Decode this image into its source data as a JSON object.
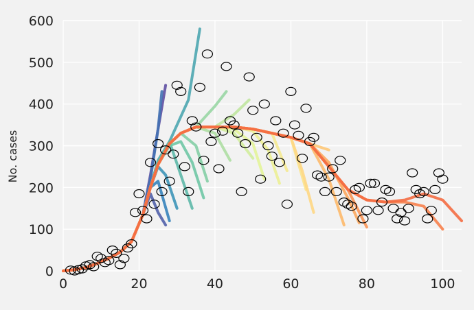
{
  "chart_data": {
    "type": "scatter",
    "title": "",
    "xlabel": "",
    "ylabel": "No. cases",
    "xlim": [
      0,
      105
    ],
    "ylim": [
      0,
      600
    ],
    "xticks": [
      0,
      20,
      40,
      60,
      80,
      100
    ],
    "yticks": [
      0,
      100,
      200,
      300,
      400,
      500,
      600
    ],
    "grid": true,
    "legend": "none",
    "colors": {
      "background": "#f2f2f2",
      "grid": "#ffffff",
      "points": "#000000",
      "palette": [
        "#5e4fa2",
        "#3288bd",
        "#66c2a5",
        "#abdda4",
        "#e6f598",
        "#fee08b",
        "#fdae61",
        "#f46d43"
      ]
    },
    "observed": {
      "x": [
        2,
        3,
        4,
        5,
        6,
        7,
        8,
        9,
        10,
        11,
        12,
        13,
        14,
        15,
        16,
        17,
        18,
        19,
        20,
        21,
        22,
        23,
        24,
        25,
        26,
        27,
        28,
        29,
        30,
        31,
        32,
        33,
        34,
        35,
        36,
        37,
        38,
        39,
        40,
        41,
        42,
        43,
        44,
        45,
        46,
        47,
        48,
        49,
        50,
        51,
        52,
        53,
        54,
        55,
        56,
        57,
        58,
        59,
        60,
        61,
        62,
        63,
        64,
        65,
        66,
        67,
        68,
        69,
        70,
        71,
        72,
        73,
        74,
        75,
        76,
        77,
        78,
        79,
        80,
        81,
        82,
        83,
        84,
        85,
        86,
        87,
        88,
        89,
        90,
        91,
        92,
        93,
        94,
        95,
        96,
        97,
        98,
        99,
        100
      ],
      "y": [
        2,
        0,
        3,
        5,
        12,
        15,
        10,
        35,
        30,
        20,
        25,
        50,
        42,
        15,
        30,
        55,
        65,
        140,
        185,
        145,
        125,
        260,
        160,
        305,
        190,
        290,
        215,
        280,
        445,
        430,
        250,
        190,
        360,
        345,
        440,
        265,
        520,
        310,
        330,
        245,
        335,
        490,
        360,
        350,
        330,
        190,
        305,
        465,
        385,
        320,
        220,
        400,
        300,
        275,
        360,
        260,
        330,
        160,
        430,
        350,
        325,
        270,
        390,
        310,
        320,
        230,
        225,
        190,
        225,
        245,
        190,
        265,
        165,
        160,
        155,
        195,
        200,
        125,
        145,
        210,
        210,
        145,
        165,
        195,
        190,
        150,
        125,
        140,
        120,
        150,
        235,
        195,
        185,
        190,
        125,
        145,
        195,
        235,
        220
      ]
    },
    "forecast_series": [
      {
        "x": [
          0,
          3,
          6,
          9,
          12,
          15,
          18,
          21,
          23,
          25,
          27
        ],
        "y": [
          0,
          3,
          8,
          18,
          30,
          45,
          70,
          135,
          230,
          340,
          445
        ]
      },
      {
        "x": [
          0,
          3,
          6,
          9,
          12,
          15,
          18,
          21,
          23,
          25,
          27
        ],
        "y": [
          0,
          3,
          8,
          18,
          30,
          45,
          70,
          135,
          185,
          140,
          110
        ]
      },
      {
        "x": [
          0,
          3,
          6,
          9,
          12,
          15,
          18,
          21,
          23,
          25,
          26
        ],
        "y": [
          0,
          3,
          8,
          18,
          30,
          45,
          70,
          135,
          220,
          340,
          430
        ]
      },
      {
        "x": [
          0,
          3,
          6,
          9,
          12,
          15,
          18,
          21,
          23,
          25,
          28
        ],
        "y": [
          0,
          3,
          8,
          18,
          30,
          45,
          70,
          135,
          200,
          215,
          120
        ]
      },
      {
        "x": [
          0,
          3,
          6,
          9,
          12,
          15,
          18,
          21,
          23,
          25,
          27,
          30
        ],
        "y": [
          0,
          3,
          8,
          18,
          30,
          45,
          70,
          135,
          200,
          250,
          230,
          150
        ]
      },
      {
        "x": [
          0,
          3,
          6,
          9,
          12,
          15,
          18,
          21,
          23,
          25,
          28,
          33,
          36
        ],
        "y": [
          0,
          3,
          8,
          18,
          30,
          45,
          70,
          135,
          200,
          265,
          310,
          410,
          580
        ]
      },
      {
        "x": [
          0,
          3,
          6,
          9,
          12,
          15,
          18,
          21,
          23,
          25,
          28,
          31,
          34
        ],
        "y": [
          0,
          3,
          8,
          18,
          30,
          45,
          70,
          135,
          200,
          260,
          310,
          230,
          150
        ]
      },
      {
        "x": [
          0,
          3,
          6,
          9,
          12,
          15,
          18,
          21,
          23,
          25,
          28,
          31,
          34,
          37
        ],
        "y": [
          0,
          3,
          8,
          18,
          30,
          45,
          70,
          135,
          200,
          255,
          300,
          310,
          260,
          175
        ]
      },
      {
        "x": [
          0,
          3,
          6,
          9,
          12,
          15,
          18,
          21,
          23,
          25,
          28,
          31,
          35,
          38
        ],
        "y": [
          0,
          3,
          8,
          18,
          30,
          45,
          70,
          135,
          200,
          255,
          305,
          330,
          300,
          215
        ]
      },
      {
        "x": [
          0,
          3,
          6,
          9,
          12,
          15,
          18,
          21,
          23,
          25,
          28,
          31,
          35,
          40,
          43
        ],
        "y": [
          0,
          3,
          8,
          18,
          30,
          45,
          70,
          135,
          200,
          255,
          305,
          330,
          345,
          395,
          430
        ]
      },
      {
        "x": [
          0,
          3,
          6,
          9,
          12,
          15,
          18,
          21,
          23,
          25,
          28,
          31,
          35,
          40,
          44
        ],
        "y": [
          0,
          3,
          8,
          18,
          30,
          45,
          70,
          135,
          200,
          255,
          305,
          330,
          345,
          330,
          265
        ]
      },
      {
        "x": [
          0,
          3,
          6,
          9,
          12,
          15,
          18,
          21,
          23,
          25,
          28,
          31,
          35,
          40,
          45,
          49
        ],
        "y": [
          0,
          3,
          8,
          18,
          30,
          45,
          70,
          135,
          200,
          255,
          305,
          330,
          345,
          345,
          375,
          410
        ]
      },
      {
        "x": [
          0,
          3,
          6,
          9,
          12,
          15,
          18,
          21,
          23,
          25,
          28,
          31,
          35,
          40,
          45,
          50
        ],
        "y": [
          0,
          3,
          8,
          18,
          30,
          45,
          70,
          135,
          200,
          255,
          305,
          330,
          345,
          345,
          330,
          270
        ]
      },
      {
        "x": [
          0,
          3,
          6,
          9,
          12,
          15,
          18,
          21,
          23,
          25,
          28,
          31,
          35,
          40,
          45,
          50,
          53
        ],
        "y": [
          0,
          3,
          8,
          18,
          30,
          45,
          70,
          135,
          200,
          255,
          305,
          330,
          345,
          345,
          340,
          305,
          220
        ]
      },
      {
        "x": [
          0,
          3,
          6,
          9,
          12,
          15,
          18,
          21,
          23,
          25,
          28,
          31,
          35,
          40,
          45,
          50,
          54,
          57
        ],
        "y": [
          0,
          3,
          8,
          18,
          30,
          45,
          70,
          135,
          200,
          255,
          305,
          330,
          345,
          345,
          345,
          335,
          290,
          210
        ]
      },
      {
        "x": [
          0,
          3,
          6,
          9,
          12,
          15,
          18,
          21,
          23,
          25,
          28,
          31,
          35,
          40,
          45,
          50,
          55,
          59
        ],
        "y": [
          0,
          3,
          8,
          18,
          30,
          45,
          70,
          135,
          200,
          255,
          305,
          330,
          345,
          345,
          345,
          340,
          330,
          240
        ]
      },
      {
        "x": [
          0,
          3,
          6,
          9,
          12,
          15,
          18,
          21,
          23,
          25,
          28,
          31,
          35,
          40,
          45,
          50,
          55,
          60,
          64
        ],
        "y": [
          0,
          3,
          8,
          18,
          30,
          45,
          70,
          135,
          200,
          255,
          305,
          330,
          345,
          345,
          345,
          340,
          330,
          320,
          195
        ]
      },
      {
        "x": [
          0,
          3,
          6,
          9,
          12,
          15,
          18,
          21,
          23,
          25,
          28,
          31,
          35,
          40,
          45,
          50,
          55,
          60,
          63,
          66
        ],
        "y": [
          0,
          3,
          8,
          18,
          30,
          45,
          70,
          135,
          200,
          255,
          305,
          330,
          345,
          345,
          345,
          340,
          330,
          320,
          240,
          140
        ]
      },
      {
        "x": [
          0,
          3,
          6,
          9,
          12,
          15,
          18,
          21,
          23,
          25,
          28,
          31,
          35,
          40,
          45,
          50,
          55,
          60,
          65,
          70
        ],
        "y": [
          0,
          3,
          8,
          18,
          30,
          45,
          70,
          135,
          200,
          255,
          305,
          330,
          345,
          345,
          345,
          340,
          330,
          320,
          305,
          290
        ]
      },
      {
        "x": [
          0,
          3,
          6,
          9,
          12,
          15,
          18,
          21,
          23,
          25,
          28,
          31,
          35,
          40,
          45,
          50,
          55,
          60,
          65,
          70,
          74
        ],
        "y": [
          0,
          3,
          8,
          18,
          30,
          45,
          70,
          135,
          200,
          255,
          305,
          330,
          345,
          345,
          345,
          340,
          330,
          320,
          305,
          220,
          110
        ]
      },
      {
        "x": [
          0,
          3,
          6,
          9,
          12,
          15,
          18,
          21,
          23,
          25,
          28,
          31,
          35,
          40,
          45,
          50,
          55,
          60,
          65,
          70,
          75,
          78
        ],
        "y": [
          0,
          3,
          8,
          18,
          30,
          45,
          70,
          135,
          200,
          255,
          305,
          330,
          345,
          345,
          345,
          340,
          330,
          320,
          305,
          260,
          175,
          115
        ]
      },
      {
        "x": [
          0,
          3,
          6,
          9,
          12,
          15,
          18,
          21,
          23,
          25,
          28,
          31,
          35,
          40,
          45,
          50,
          55,
          60,
          65,
          70,
          75,
          80
        ],
        "y": [
          0,
          3,
          8,
          18,
          30,
          45,
          70,
          135,
          200,
          255,
          305,
          330,
          345,
          345,
          345,
          340,
          330,
          320,
          305,
          250,
          195,
          105
        ]
      },
      {
        "x": [
          0,
          3,
          6,
          9,
          12,
          15,
          18,
          21,
          23,
          25,
          28,
          31,
          35,
          40,
          45,
          50,
          55,
          60,
          65,
          70,
          75,
          80,
          85,
          90,
          95,
          100
        ],
        "y": [
          0,
          3,
          8,
          18,
          30,
          45,
          70,
          135,
          200,
          255,
          305,
          330,
          345,
          345,
          345,
          340,
          330,
          320,
          305,
          250,
          195,
          170,
          165,
          165,
          155,
          100
        ]
      },
      {
        "x": [
          0,
          3,
          6,
          9,
          12,
          15,
          18,
          21,
          23,
          25,
          28,
          31,
          35,
          40,
          45,
          50,
          55,
          60,
          65,
          70,
          75,
          80,
          85,
          90,
          95,
          100,
          105
        ],
        "y": [
          0,
          3,
          8,
          18,
          30,
          45,
          70,
          135,
          200,
          255,
          305,
          330,
          345,
          345,
          345,
          340,
          330,
          320,
          305,
          250,
          195,
          170,
          165,
          170,
          185,
          170,
          120
        ]
      }
    ]
  }
}
